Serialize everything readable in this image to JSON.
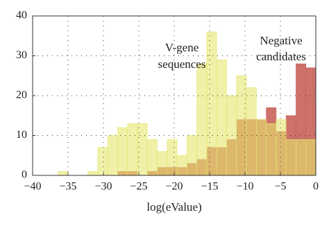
{
  "chart_data": {
    "type": "histogram",
    "xlabel": "log(eValue)",
    "annotations": [
      "V-gene",
      "sequences",
      "Negative",
      "candidates"
    ],
    "bins": [
      -36.4,
      -35,
      -33.6,
      -32.2,
      -30.8,
      -29.4,
      -28,
      -26.6,
      -25.2,
      -23.8,
      -22.4,
      -21,
      -19.6,
      -18.2,
      -16.8,
      -15.4,
      -14,
      -12.6,
      -11.2,
      -9.8,
      -8.4,
      -7,
      -5.6,
      -4.2,
      -2.8,
      -1.4,
      0
    ],
    "series": [
      {
        "color": "#c8625a",
        "values": [
          0,
          0,
          0,
          0,
          0,
          0,
          1,
          1,
          0,
          1,
          2,
          2,
          2,
          3,
          4,
          7,
          7,
          9,
          14,
          14,
          14,
          17,
          11,
          15,
          28,
          27
        ]
      },
      {
        "color": "#e6e66e",
        "values": [
          1,
          0,
          0,
          1,
          7,
          10,
          12,
          13,
          13,
          9,
          6,
          9,
          5,
          10,
          28,
          36,
          29,
          20,
          25,
          22,
          14,
          13,
          14,
          9,
          9,
          9
        ]
      }
    ],
    "xlim": [
      -40,
      0
    ],
    "ylim": [
      0,
      40
    ],
    "xticks": [
      {
        "value": -40,
        "label": "−40"
      },
      {
        "value": -35,
        "label": "−35"
      },
      {
        "value": -30,
        "label": "−30"
      },
      {
        "value": -25,
        "label": "−25"
      },
      {
        "value": -20,
        "label": "−20"
      },
      {
        "value": -15,
        "label": "−15"
      },
      {
        "value": -10,
        "label": "−10"
      },
      {
        "value": -5,
        "label": "−5"
      },
      0
    ],
    "yticks": [
      0,
      10,
      20,
      30,
      40
    ],
    "grid": true
  }
}
